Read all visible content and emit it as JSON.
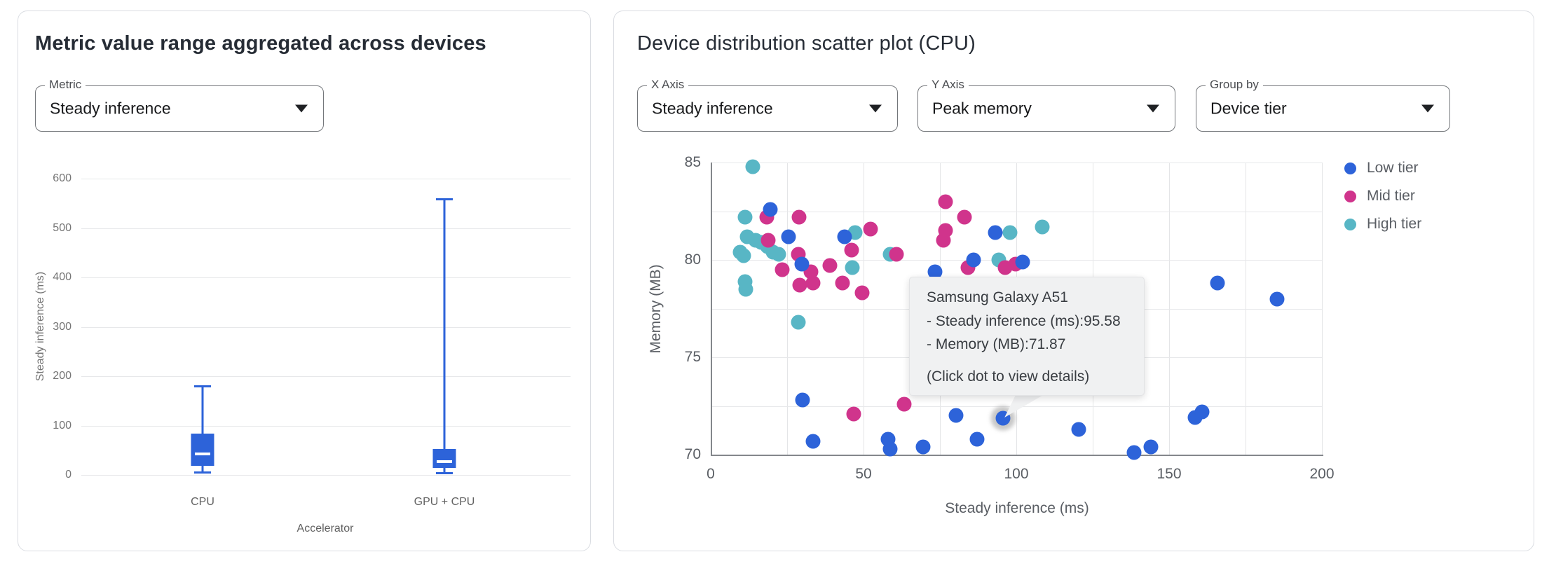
{
  "left_panel": {
    "title": "Metric value range aggregated across devices",
    "metric_select": {
      "label": "Metric",
      "value": "Steady inference"
    }
  },
  "right_panel": {
    "title": "Device distribution scatter plot (CPU)",
    "x_axis_select": {
      "label": "X Axis",
      "value": "Steady inference"
    },
    "y_axis_select": {
      "label": "Y Axis",
      "value": "Peak memory"
    },
    "group_by_select": {
      "label": "Group by",
      "value": "Device tier"
    },
    "tooltip": {
      "title": "Samsung Galaxy A51",
      "lines": [
        "- Steady inference (ms):95.58",
        "- Memory (MB):71.87"
      ],
      "hint": "(Click dot to view details)"
    }
  },
  "colors": {
    "box_blue": "#2d63d9",
    "low_tier": "#2d63d9",
    "mid_tier": "#d0348c",
    "high_tier": "#58b6c5"
  },
  "chart_data": [
    {
      "type": "box",
      "title": "Metric value range aggregated across devices",
      "xlabel": "Accelerator",
      "ylabel": "Steady inference (ms)",
      "ylim": [
        0,
        600
      ],
      "yticks": [
        0,
        100,
        200,
        300,
        400,
        500,
        600
      ],
      "grid": true,
      "categories": [
        "CPU",
        "GPU + CPU"
      ],
      "boxes": [
        {
          "category": "CPU",
          "whisker_low": 7,
          "q1": 19,
          "median": 42,
          "q3": 83,
          "whisker_high": 182
        },
        {
          "category": "GPU + CPU",
          "whisker_low": 6,
          "q1": 14,
          "median": 27,
          "q3": 53,
          "whisker_high": 560
        }
      ],
      "box_color": "#2d63d9"
    },
    {
      "type": "scatter",
      "title": "Device distribution scatter plot (CPU)",
      "xlabel": "Steady inference (ms)",
      "ylabel": "Memory (MB)",
      "xlim": [
        0,
        200
      ],
      "ylim": [
        70,
        85
      ],
      "xticks": [
        0,
        50,
        100,
        150,
        200
      ],
      "yticks": [
        70,
        75,
        80,
        85
      ],
      "x_grid_step": 25,
      "y_grid_step": 2.5,
      "grid": true,
      "legend_position": "right-top",
      "legend": [
        {
          "label": "Low tier",
          "color": "#2d63d9"
        },
        {
          "label": "Mid tier",
          "color": "#d0348c"
        },
        {
          "label": "High tier",
          "color": "#58b6c5"
        }
      ],
      "series": [
        {
          "name": "High tier",
          "color": "#58b6c5",
          "points": [
            [
              13.8,
              84.8
            ],
            [
              11.2,
              82.2
            ],
            [
              9.7,
              80.4
            ],
            [
              10.8,
              80.2
            ],
            [
              12.0,
              81.2
            ],
            [
              14.7,
              81.0
            ],
            [
              16.6,
              80.9
            ],
            [
              18.5,
              80.7
            ],
            [
              20.4,
              80.4
            ],
            [
              22.3,
              80.3
            ],
            [
              11.2,
              78.9
            ],
            [
              11.5,
              78.5
            ],
            [
              28.6,
              76.8
            ],
            [
              46.3,
              79.6
            ],
            [
              47.2,
              81.4
            ],
            [
              58.8,
              80.3
            ],
            [
              94.3,
              80.0
            ],
            [
              97.9,
              81.4
            ],
            [
              108.5,
              81.7
            ]
          ]
        },
        {
          "name": "Mid tier",
          "color": "#d0348c",
          "points": [
            [
              18.3,
              82.2
            ],
            [
              28.9,
              82.2
            ],
            [
              18.9,
              81.0
            ],
            [
              23.3,
              79.5
            ],
            [
              28.6,
              80.3
            ],
            [
              32.9,
              79.4
            ],
            [
              29.2,
              78.7
            ],
            [
              33.4,
              78.8
            ],
            [
              39.1,
              79.7
            ],
            [
              43.2,
              78.8
            ],
            [
              46.2,
              80.5
            ],
            [
              52.3,
              81.6
            ],
            [
              49.5,
              78.3
            ],
            [
              60.8,
              80.3
            ],
            [
              76.9,
              83.0
            ],
            [
              83.0,
              82.2
            ],
            [
              76.9,
              81.5
            ],
            [
              76.1,
              81.0
            ],
            [
              84.2,
              79.6
            ],
            [
              96.4,
              79.6
            ],
            [
              99.8,
              79.8
            ],
            [
              46.9,
              72.1
            ],
            [
              63.3,
              72.6
            ]
          ]
        },
        {
          "name": "Low tier",
          "color": "#2d63d9",
          "points": [
            [
              19.4,
              82.6
            ],
            [
              25.4,
              81.2
            ],
            [
              43.7,
              81.2
            ],
            [
              29.9,
              79.8
            ],
            [
              73.5,
              79.4
            ],
            [
              86.1,
              80.0
            ],
            [
              93.2,
              81.4
            ],
            [
              102.0,
              79.9
            ],
            [
              30.0,
              72.8
            ],
            [
              33.5,
              70.7
            ],
            [
              58.1,
              70.8
            ],
            [
              58.8,
              70.3
            ],
            [
              69.4,
              70.4
            ],
            [
              80.3,
              72.0
            ],
            [
              87.2,
              70.8
            ],
            [
              120.5,
              71.3
            ],
            [
              138.6,
              70.1
            ],
            [
              144.1,
              70.4
            ],
            [
              158.5,
              71.9
            ],
            [
              160.8,
              72.2
            ],
            [
              165.8,
              78.8
            ],
            [
              185.4,
              78.0
            ]
          ]
        }
      ],
      "highlight": {
        "series": "Low tier",
        "device": "Samsung Galaxy A51",
        "x": 95.58,
        "y": 71.87
      }
    }
  ]
}
